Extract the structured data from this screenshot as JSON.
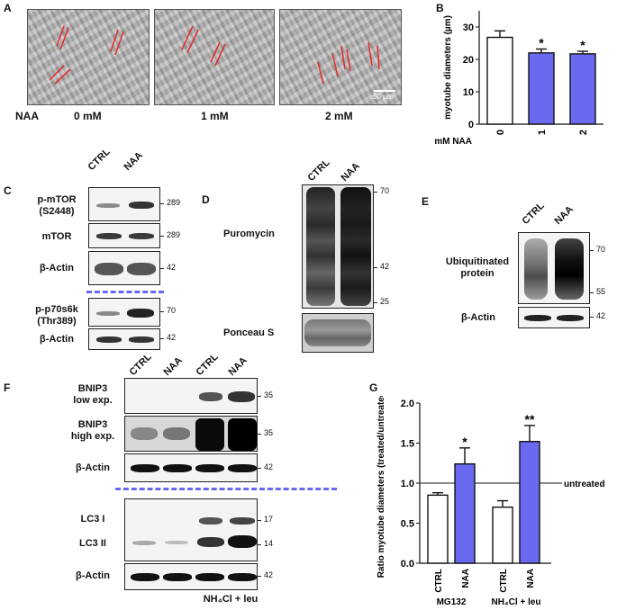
{
  "panelA": {
    "letter": "A",
    "naa_label": "NAA",
    "images": [
      {
        "label": "0 mM"
      },
      {
        "label": "1 mM"
      },
      {
        "label": "2 mM"
      }
    ],
    "scale_bar": "50 µm"
  },
  "panelB": {
    "letter": "B",
    "xprefix": "mM NAA"
  },
  "panelC": {
    "letter": "C",
    "cols": [
      "CTRL",
      "NAA"
    ],
    "rows": [
      {
        "label": "p-mTOR\n(S2448)",
        "mw": "289"
      },
      {
        "label": "mTOR",
        "mw": "289"
      },
      {
        "label": "β-Actin",
        "mw": "42"
      },
      {
        "label": "p-p70s6k\n(Thr389)",
        "mw": "70"
      },
      {
        "label": "β-Actin",
        "mw": "42"
      }
    ]
  },
  "panelD": {
    "letter": "D",
    "cols": [
      "CTRL",
      "NAA"
    ],
    "rows": [
      {
        "label": "Puromycin"
      },
      {
        "label": "Ponceau S"
      }
    ],
    "mw": [
      "70",
      "42",
      "25"
    ]
  },
  "panelE": {
    "letter": "E",
    "cols": [
      "CTRL",
      "NAA"
    ],
    "rows": [
      {
        "label": "Ubiquitinated\nprotein"
      },
      {
        "label": "β-Actin"
      }
    ],
    "mw": [
      "70",
      "55",
      "42"
    ]
  },
  "panelF": {
    "letter": "F",
    "cols": [
      "CTRL",
      "NAA",
      "CTRL",
      "NAA"
    ],
    "rows": [
      {
        "label": "BNIP3\nlow exp.",
        "mw": "35"
      },
      {
        "label": "BNIP3\nhigh exp.",
        "mw": "35"
      },
      {
        "label": "β-Actin",
        "mw": "42"
      },
      {
        "label": "LC3 I",
        "mw": "17"
      },
      {
        "label": "LC3 II",
        "mw": "14"
      },
      {
        "label": "β-Actin",
        "mw": "42"
      }
    ],
    "treatment": "NH₄Cl  + leu"
  },
  "panelG": {
    "letter": "G",
    "untreated_label": "untreated"
  },
  "colors": {
    "bar_naa": "#6a6af0",
    "bar_ctrl": "#ffffff",
    "line_marks": "#e23030"
  },
  "chart_data": [
    {
      "type": "bar",
      "categories": [
        "0",
        "1",
        "2"
      ],
      "values": [
        26.8,
        22.0,
        21.7
      ],
      "errors": [
        2.0,
        1.2,
        0.8
      ],
      "significance": [
        "",
        "*",
        "*"
      ],
      "bar_colors": [
        "#ffffff",
        "#6a6af0",
        "#6a6af0"
      ],
      "title": "",
      "xlabel": "mM NAA",
      "ylabel": "myotube diameters (µm)",
      "ylim": [
        0,
        35
      ],
      "yticks": [
        0,
        10,
        20,
        30
      ]
    },
    {
      "type": "bar",
      "categories": [
        "CTRL",
        "NAA",
        "CTRL",
        "NAA"
      ],
      "groups": [
        "MG132",
        "NH₄Cl + leu"
      ],
      "values": [
        0.85,
        1.24,
        0.7,
        1.52
      ],
      "errors": [
        0.03,
        0.2,
        0.08,
        0.2
      ],
      "significance": [
        "",
        "*",
        "",
        "**"
      ],
      "bar_colors": [
        "#ffffff",
        "#6a6af0",
        "#ffffff",
        "#6a6af0"
      ],
      "title": "",
      "ylabel": "Ratio myotube diameters (treated/untreated)",
      "ylim": [
        0,
        2.0
      ],
      "yticks": [
        "0.0",
        "0.5",
        "1.0",
        "1.5",
        "2.0"
      ],
      "reference_line": 1.0,
      "reference_label": "untreated"
    }
  ]
}
